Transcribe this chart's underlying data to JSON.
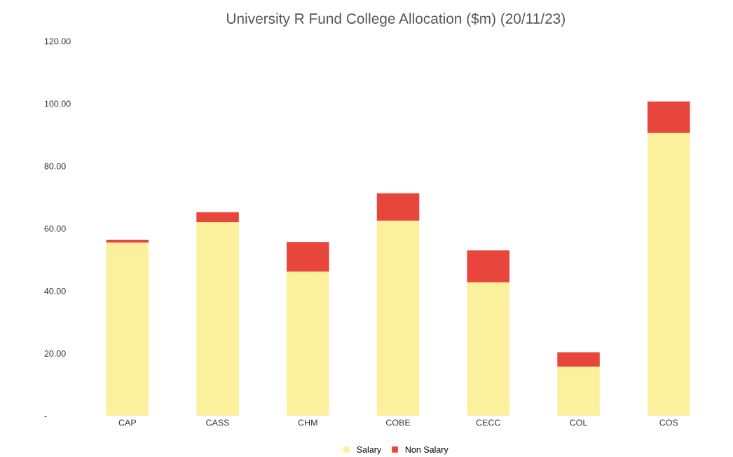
{
  "chart_data": {
    "type": "bar",
    "title": "University R Fund College Allocation ($m) (20/11/23)",
    "categories": [
      "CAP",
      "CASS",
      "CHM",
      "COBE",
      "CECC",
      "COL",
      "COS"
    ],
    "stacked": true,
    "series": [
      {
        "name": "Salary",
        "color": "#fbf09c",
        "values": [
          55.5,
          62.0,
          46.2,
          62.5,
          42.8,
          15.8,
          90.6
        ]
      },
      {
        "name": "Non Salary",
        "color": "#e8453c",
        "values": [
          0.9,
          3.2,
          9.5,
          8.8,
          10.2,
          4.6,
          10.1
        ]
      }
    ],
    "ylim": [
      0,
      120
    ],
    "yticks": [
      {
        "value": 0,
        "label": "-"
      },
      {
        "value": 20,
        "label": "20.00"
      },
      {
        "value": 40,
        "label": "40.00"
      },
      {
        "value": 60,
        "label": "60.00"
      },
      {
        "value": 80,
        "label": "80.00"
      },
      {
        "value": 100,
        "label": "100.00"
      },
      {
        "value": 120,
        "label": "120.00"
      }
    ],
    "grid": false,
    "legend": "bottom"
  }
}
